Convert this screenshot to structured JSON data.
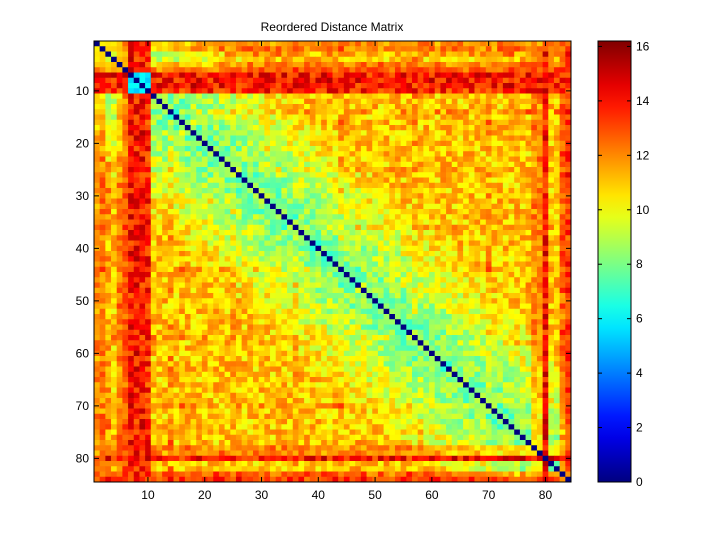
{
  "chart_data": {
    "type": "heatmap",
    "title": "Reordered Distance Matrix",
    "xlabel": "",
    "ylabel": "",
    "matrix_size": 84,
    "x_ticks": [
      10,
      20,
      30,
      40,
      50,
      60,
      70,
      80
    ],
    "y_ticks": [
      10,
      20,
      30,
      40,
      50,
      60,
      70,
      80
    ],
    "colorbar": {
      "min": 0,
      "max": 16.2,
      "ticks": [
        0,
        2,
        4,
        6,
        8,
        10,
        12,
        14,
        16
      ],
      "colormap": "jet"
    },
    "diagonal_value": 0,
    "typical_value_range": [
      6,
      11
    ],
    "high_distance_rows": [
      7,
      8,
      9,
      10,
      80,
      84
    ],
    "high_distance_value_range": [
      12.5,
      15.5
    ],
    "low_distance_block": {
      "rows": [
        7,
        10
      ],
      "cols": [
        7,
        10
      ],
      "value_range": [
        5,
        6.5
      ]
    }
  }
}
